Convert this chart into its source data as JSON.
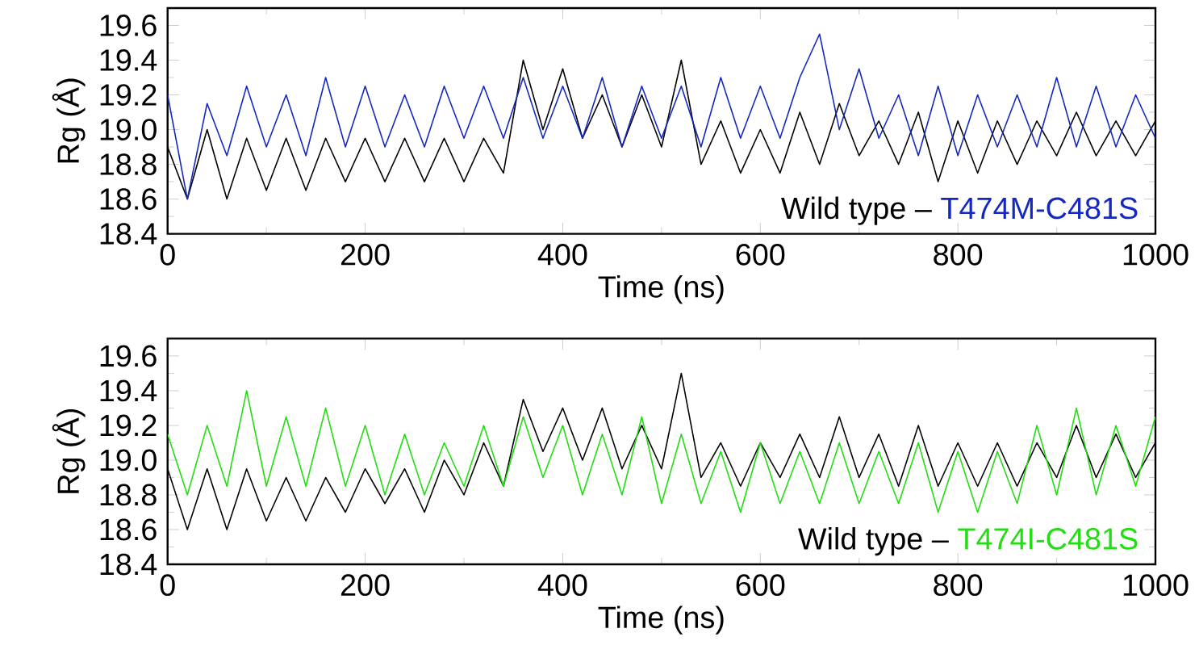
{
  "chart_data": [
    {
      "type": "line",
      "xlabel": "Time (ns)",
      "ylabel": "Rg (Å)",
      "legend": "bottom right",
      "xlim": [
        0,
        1000
      ],
      "ylim": [
        18.4,
        19.7
      ],
      "xticks": [
        0,
        200,
        400,
        600,
        800,
        1000
      ],
      "yticks": [
        18.4,
        18.6,
        18.8,
        {
          "value": 19,
          "label": "19.0"
        },
        19.2,
        19.4,
        19.6
      ],
      "x": [
        0,
        20,
        40,
        60,
        80,
        100,
        120,
        140,
        160,
        180,
        200,
        220,
        240,
        260,
        280,
        300,
        320,
        340,
        360,
        380,
        400,
        420,
        440,
        460,
        480,
        500,
        520,
        540,
        560,
        580,
        600,
        620,
        640,
        660,
        680,
        700,
        720,
        740,
        760,
        780,
        800,
        820,
        840,
        860,
        880,
        900,
        920,
        940,
        960,
        980,
        1000
      ],
      "series": [
        {
          "name": "Wild type –",
          "color": "#000000",
          "values": [
            18.9,
            18.6,
            19.0,
            18.6,
            18.95,
            18.65,
            18.95,
            18.65,
            18.95,
            18.7,
            18.95,
            18.7,
            18.95,
            18.7,
            18.95,
            18.7,
            18.95,
            18.75,
            19.4,
            19.0,
            19.35,
            18.95,
            19.2,
            18.9,
            19.2,
            18.9,
            19.4,
            18.8,
            19.05,
            18.75,
            19.0,
            18.75,
            19.1,
            18.8,
            19.15,
            18.85,
            19.05,
            18.8,
            19.1,
            18.7,
            19.05,
            18.75,
            19.05,
            18.8,
            19.05,
            18.85,
            19.1,
            18.85,
            19.05,
            18.85,
            19.05
          ]
        },
        {
          "name": "T474M-C481S",
          "color": "#1428c0",
          "values": [
            19.2,
            18.6,
            19.15,
            18.85,
            19.25,
            18.9,
            19.2,
            18.85,
            19.3,
            18.9,
            19.25,
            18.9,
            19.2,
            18.9,
            19.25,
            18.95,
            19.25,
            18.95,
            19.3,
            18.95,
            19.25,
            18.95,
            19.3,
            18.9,
            19.25,
            18.95,
            19.25,
            18.9,
            19.3,
            18.95,
            19.25,
            18.95,
            19.3,
            19.55,
            19.0,
            19.35,
            18.95,
            19.2,
            18.85,
            19.25,
            18.85,
            19.2,
            18.9,
            19.2,
            18.9,
            19.3,
            18.9,
            19.25,
            18.9,
            19.2,
            18.95
          ]
        }
      ]
    },
    {
      "type": "line",
      "xlabel": "Time (ns)",
      "ylabel": "Rg (Å)",
      "legend": "bottom right",
      "xlim": [
        0,
        1000
      ],
      "ylim": [
        18.4,
        19.7
      ],
      "xticks": [
        0,
        200,
        400,
        600,
        800,
        1000
      ],
      "yticks": [
        18.4,
        18.6,
        18.8,
        {
          "value": 19,
          "label": "19.0"
        },
        19.2,
        19.4,
        19.6
      ],
      "x": [
        0,
        20,
        40,
        60,
        80,
        100,
        120,
        140,
        160,
        180,
        200,
        220,
        240,
        260,
        280,
        300,
        320,
        340,
        360,
        380,
        400,
        420,
        440,
        460,
        480,
        500,
        520,
        540,
        560,
        580,
        600,
        620,
        640,
        660,
        680,
        700,
        720,
        740,
        760,
        780,
        800,
        820,
        840,
        860,
        880,
        900,
        920,
        940,
        960,
        980,
        1000
      ],
      "series": [
        {
          "name": "Wild type –",
          "color": "#000000",
          "values": [
            18.95,
            18.6,
            18.95,
            18.6,
            18.95,
            18.65,
            18.9,
            18.65,
            18.9,
            18.7,
            18.95,
            18.75,
            18.95,
            18.7,
            19.0,
            18.8,
            19.1,
            18.85,
            19.35,
            19.05,
            19.3,
            19.0,
            19.3,
            18.95,
            19.2,
            18.95,
            19.5,
            18.9,
            19.1,
            18.85,
            19.1,
            18.9,
            19.15,
            18.9,
            19.25,
            18.9,
            19.15,
            18.85,
            19.2,
            18.85,
            19.1,
            18.85,
            19.1,
            18.85,
            19.1,
            18.9,
            19.2,
            18.9,
            19.15,
            18.9,
            19.1
          ]
        },
        {
          "name": "T474I-C481S",
          "color": "#22dd11",
          "values": [
            19.15,
            18.8,
            19.2,
            18.85,
            19.4,
            18.85,
            19.25,
            18.85,
            19.3,
            18.85,
            19.2,
            18.8,
            19.15,
            18.8,
            19.1,
            18.85,
            19.2,
            18.85,
            19.25,
            18.9,
            19.2,
            18.8,
            19.15,
            18.8,
            19.25,
            18.75,
            19.15,
            18.75,
            19.05,
            18.7,
            19.1,
            18.75,
            19.05,
            18.75,
            19.1,
            18.75,
            19.05,
            18.75,
            19.1,
            18.7,
            19.05,
            18.7,
            19.05,
            18.75,
            19.2,
            18.8,
            19.3,
            18.8,
            19.2,
            18.85,
            19.25
          ]
        }
      ]
    }
  ]
}
